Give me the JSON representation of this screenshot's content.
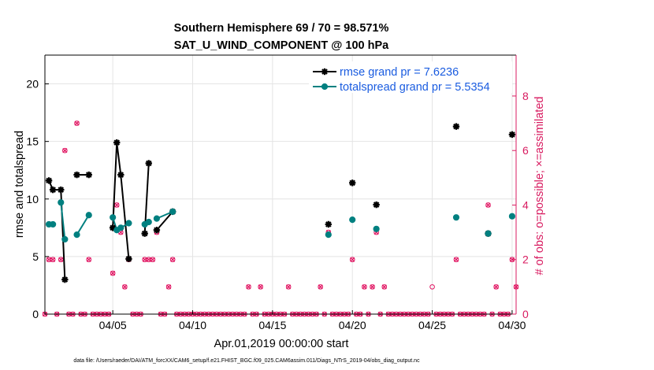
{
  "chart_data": {
    "type": "line",
    "title": "Southern Hemisphere 69 / 70 = 98.571%",
    "subtitle": "SAT_U_WIND_COMPONENT @ 100 hPa",
    "xlabel": "Apr.01,2019 00:00:00 start",
    "ylabel": "rmse and totalspread",
    "ylabel_right": "# of obs: o=possible; ×=assimilated",
    "xlim": [
      0.75,
      30.25
    ],
    "ylim": [
      0,
      22.5
    ],
    "ylim_right": [
      0,
      9.5
    ],
    "x_ticks": [
      {
        "value": 5,
        "label": "04/05"
      },
      {
        "value": 10,
        "label": "04/10"
      },
      {
        "value": 15,
        "label": "04/15"
      },
      {
        "value": 20,
        "label": "04/20"
      },
      {
        "value": 25,
        "label": "04/25"
      },
      {
        "value": 30,
        "label": "04/30"
      }
    ],
    "y_ticks": [
      0,
      5,
      10,
      15,
      20
    ],
    "y_ticks_right": [
      0,
      2,
      4,
      6,
      8
    ],
    "legend_position": "top-right",
    "series": [
      {
        "name": "rmse grand pr = 7.6236",
        "color": "#000000",
        "marker": "star",
        "points": [
          [
            1.0,
            11.6
          ],
          [
            1.25,
            10.8
          ],
          [
            1.75,
            10.8
          ],
          [
            2.0,
            3.0
          ],
          null,
          [
            2.75,
            12.1
          ],
          [
            3.5,
            12.1
          ],
          null,
          [
            5.0,
            7.5
          ],
          [
            5.25,
            14.9
          ],
          [
            5.5,
            12.1
          ],
          [
            6.0,
            4.8
          ],
          null,
          [
            7.0,
            7.0
          ],
          [
            7.25,
            13.1
          ],
          null,
          [
            7.75,
            7.3
          ],
          [
            8.75,
            8.9
          ],
          null,
          [
            18.5,
            7.8
          ],
          null,
          [
            20.0,
            11.4
          ],
          null,
          [
            21.5,
            9.5
          ],
          null,
          [
            26.5,
            16.3
          ],
          null,
          [
            28.5,
            7.0
          ],
          null,
          [
            30.0,
            15.6
          ]
        ]
      },
      {
        "name": "totalspread grand pr = 5.5354",
        "color": "#008080",
        "marker": "circle",
        "points": [
          [
            1.0,
            7.8
          ],
          [
            1.25,
            7.8
          ],
          null,
          [
            1.75,
            9.7
          ],
          [
            2.0,
            6.5
          ],
          null,
          [
            2.75,
            6.9
          ],
          [
            3.5,
            8.6
          ],
          null,
          [
            5.0,
            8.4
          ],
          [
            5.25,
            7.3
          ],
          [
            5.5,
            7.5
          ],
          [
            6.0,
            7.9
          ],
          null,
          [
            7.0,
            7.8
          ],
          [
            7.25,
            8.0
          ],
          null,
          [
            7.75,
            8.3
          ],
          [
            8.75,
            8.9
          ],
          null,
          [
            18.5,
            6.9
          ],
          null,
          [
            20.0,
            8.2
          ],
          null,
          [
            21.5,
            7.4
          ],
          null,
          [
            26.5,
            8.4
          ],
          null,
          [
            28.5,
            7.0
          ],
          null,
          [
            30.0,
            8.5
          ]
        ]
      }
    ],
    "obs_possible": [
      [
        0.75,
        0
      ],
      [
        1.0,
        2
      ],
      [
        1.25,
        2
      ],
      [
        1.5,
        0
      ],
      [
        1.75,
        2
      ],
      [
        2.0,
        6
      ],
      [
        2.25,
        0
      ],
      [
        2.5,
        0
      ],
      [
        2.75,
        7
      ],
      [
        3.0,
        0
      ],
      [
        3.25,
        0
      ],
      [
        3.5,
        2
      ],
      [
        3.75,
        0
      ],
      [
        4.0,
        0
      ],
      [
        4.25,
        0
      ],
      [
        4.5,
        0
      ],
      [
        4.75,
        0
      ],
      [
        5.0,
        1.5
      ],
      [
        5.25,
        4
      ],
      [
        5.5,
        3
      ],
      [
        5.75,
        1
      ],
      [
        6.0,
        2
      ],
      [
        6.25,
        0
      ],
      [
        6.5,
        0
      ],
      [
        6.75,
        0
      ],
      [
        7.0,
        2
      ],
      [
        7.25,
        2
      ],
      [
        7.5,
        2
      ],
      [
        7.75,
        3
      ],
      [
        8.0,
        0
      ],
      [
        8.25,
        0
      ],
      [
        8.5,
        1
      ],
      [
        8.75,
        2
      ],
      [
        9.0,
        0
      ],
      [
        9.25,
        0
      ],
      [
        9.5,
        0
      ],
      [
        9.75,
        0
      ],
      [
        10.0,
        0
      ],
      [
        10.25,
        0
      ],
      [
        10.5,
        0
      ],
      [
        10.75,
        0
      ],
      [
        11.0,
        0
      ],
      [
        11.25,
        0
      ],
      [
        11.5,
        0
      ],
      [
        11.75,
        0
      ],
      [
        12.0,
        0
      ],
      [
        12.25,
        0
      ],
      [
        12.5,
        0
      ],
      [
        12.75,
        0
      ],
      [
        13.0,
        0
      ],
      [
        13.25,
        0
      ],
      [
        13.5,
        1
      ],
      [
        13.75,
        0
      ],
      [
        14.0,
        0
      ],
      [
        14.25,
        1
      ],
      [
        14.5,
        0
      ],
      [
        14.75,
        0
      ],
      [
        15.0,
        0
      ],
      [
        15.25,
        0
      ],
      [
        15.5,
        0
      ],
      [
        15.75,
        0
      ],
      [
        16.0,
        1
      ],
      [
        16.25,
        0
      ],
      [
        16.5,
        0
      ],
      [
        16.75,
        0
      ],
      [
        17.0,
        0
      ],
      [
        17.25,
        0
      ],
      [
        17.5,
        0
      ],
      [
        17.75,
        0
      ],
      [
        18.0,
        1
      ],
      [
        18.25,
        0
      ],
      [
        18.5,
        3
      ],
      [
        18.75,
        0
      ],
      [
        19.0,
        0
      ],
      [
        19.25,
        0
      ],
      [
        19.5,
        0
      ],
      [
        19.75,
        0
      ],
      [
        20.0,
        2
      ],
      [
        20.25,
        0
      ],
      [
        20.5,
        0
      ],
      [
        20.75,
        1
      ],
      [
        21.0,
        0
      ],
      [
        21.25,
        1
      ],
      [
        21.5,
        3
      ],
      [
        21.75,
        0
      ],
      [
        22.0,
        1
      ],
      [
        22.25,
        0
      ],
      [
        22.5,
        0
      ],
      [
        22.75,
        0
      ],
      [
        23.0,
        0
      ],
      [
        23.25,
        0
      ],
      [
        23.5,
        0
      ],
      [
        23.75,
        0
      ],
      [
        24.0,
        0
      ],
      [
        24.25,
        0
      ],
      [
        24.5,
        0
      ],
      [
        24.75,
        0
      ],
      [
        25.0,
        1
      ],
      [
        25.25,
        0
      ],
      [
        25.5,
        0
      ],
      [
        25.75,
        0
      ],
      [
        26.0,
        0
      ],
      [
        26.25,
        0
      ],
      [
        26.5,
        2
      ],
      [
        26.75,
        0
      ],
      [
        27.0,
        0
      ],
      [
        27.25,
        0
      ],
      [
        27.5,
        0
      ],
      [
        27.75,
        0
      ],
      [
        28.0,
        0
      ],
      [
        28.25,
        0
      ],
      [
        28.5,
        4
      ],
      [
        28.75,
        0
      ],
      [
        29.0,
        1
      ],
      [
        29.25,
        0
      ],
      [
        29.5,
        0
      ],
      [
        29.75,
        0
      ],
      [
        30.0,
        2
      ],
      [
        30.25,
        1
      ]
    ],
    "obs_assimilated": [
      [
        0.75,
        0
      ],
      [
        1.0,
        2
      ],
      [
        1.25,
        2
      ],
      [
        1.5,
        0
      ],
      [
        1.75,
        2
      ],
      [
        2.0,
        6
      ],
      [
        2.25,
        0
      ],
      [
        2.5,
        0
      ],
      [
        2.75,
        7
      ],
      [
        3.0,
        0
      ],
      [
        3.25,
        0
      ],
      [
        3.5,
        2
      ],
      [
        3.75,
        0
      ],
      [
        4.0,
        0
      ],
      [
        4.25,
        0
      ],
      [
        4.5,
        0
      ],
      [
        4.75,
        0
      ],
      [
        5.0,
        1.5
      ],
      [
        5.25,
        4
      ],
      [
        5.5,
        3
      ],
      [
        5.75,
        1
      ],
      [
        6.0,
        2
      ],
      [
        6.25,
        0
      ],
      [
        6.5,
        0
      ],
      [
        6.75,
        0
      ],
      [
        7.0,
        2
      ],
      [
        7.25,
        2
      ],
      [
        7.5,
        2
      ],
      [
        7.75,
        3
      ],
      [
        8.0,
        0
      ],
      [
        8.25,
        0
      ],
      [
        8.5,
        1
      ],
      [
        8.75,
        2
      ],
      [
        9.0,
        0
      ],
      [
        9.25,
        0
      ],
      [
        9.5,
        0
      ],
      [
        9.75,
        0
      ],
      [
        10.0,
        0
      ],
      [
        10.25,
        0
      ],
      [
        10.5,
        0
      ],
      [
        10.75,
        0
      ],
      [
        11.0,
        0
      ],
      [
        11.25,
        0
      ],
      [
        11.5,
        0
      ],
      [
        11.75,
        0
      ],
      [
        12.0,
        0
      ],
      [
        12.25,
        0
      ],
      [
        12.5,
        0
      ],
      [
        12.75,
        0
      ],
      [
        13.0,
        0
      ],
      [
        13.25,
        0
      ],
      [
        13.5,
        1
      ],
      [
        13.75,
        0
      ],
      [
        14.0,
        0
      ],
      [
        14.25,
        1
      ],
      [
        14.5,
        0
      ],
      [
        14.75,
        0
      ],
      [
        15.0,
        0
      ],
      [
        15.25,
        0
      ],
      [
        15.5,
        0
      ],
      [
        15.75,
        0
      ],
      [
        16.0,
        1
      ],
      [
        16.25,
        0
      ],
      [
        16.5,
        0
      ],
      [
        16.75,
        0
      ],
      [
        17.0,
        0
      ],
      [
        17.25,
        0
      ],
      [
        17.5,
        0
      ],
      [
        17.75,
        0
      ],
      [
        18.0,
        1
      ],
      [
        18.25,
        0
      ],
      [
        18.5,
        3
      ],
      [
        18.75,
        0
      ],
      [
        19.0,
        0
      ],
      [
        19.25,
        0
      ],
      [
        19.5,
        0
      ],
      [
        19.75,
        0
      ],
      [
        20.0,
        2
      ],
      [
        20.25,
        0
      ],
      [
        20.5,
        0
      ],
      [
        20.75,
        1
      ],
      [
        21.0,
        0
      ],
      [
        21.25,
        1
      ],
      [
        21.5,
        3
      ],
      [
        21.75,
        0
      ],
      [
        22.0,
        1
      ],
      [
        22.25,
        0
      ],
      [
        22.5,
        0
      ],
      [
        22.75,
        0
      ],
      [
        23.0,
        0
      ],
      [
        23.25,
        0
      ],
      [
        23.5,
        0
      ],
      [
        23.75,
        0
      ],
      [
        24.0,
        0
      ],
      [
        24.25,
        0
      ],
      [
        24.5,
        0
      ],
      [
        24.75,
        0
      ],
      [
        25.25,
        0
      ],
      [
        25.5,
        0
      ],
      [
        25.75,
        0
      ],
      [
        26.0,
        0
      ],
      [
        26.25,
        0
      ],
      [
        26.5,
        2
      ],
      [
        26.75,
        0
      ],
      [
        27.0,
        0
      ],
      [
        27.25,
        0
      ],
      [
        27.5,
        0
      ],
      [
        27.75,
        0
      ],
      [
        28.0,
        0
      ],
      [
        28.25,
        0
      ],
      [
        28.5,
        4
      ],
      [
        28.75,
        0
      ],
      [
        29.0,
        1
      ],
      [
        29.25,
        0
      ],
      [
        29.5,
        0
      ],
      [
        29.75,
        0
      ],
      [
        30.0,
        2
      ],
      [
        30.25,
        1
      ]
    ],
    "footer": "data file: /Users/raeder/DAI/ATM_forcXX/CAM6_setup/f.e21.FHIST_BGC.f09_025.CAM6assim.011/Diags_NTrS_2019-04/obs_diag_output.nc"
  }
}
